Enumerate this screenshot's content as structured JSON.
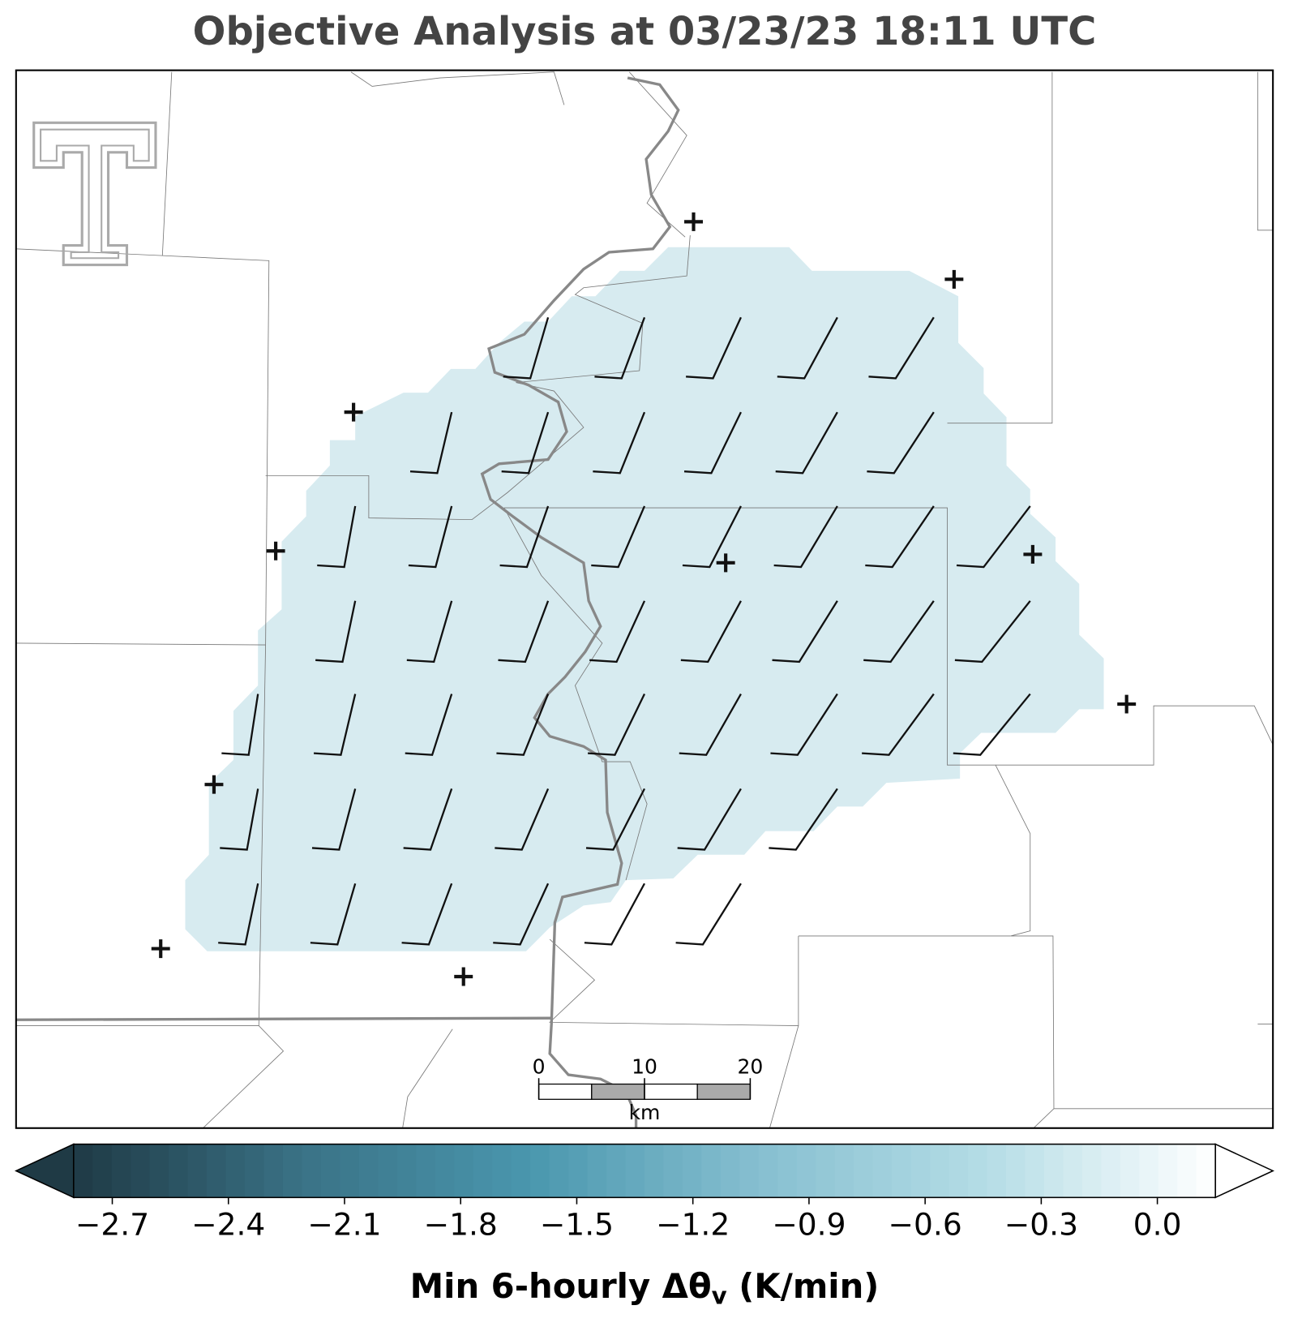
{
  "chart_data": {
    "type": "map",
    "title": "Objective Analysis at 03/23/23 18:11 UTC",
    "scale_bar": {
      "ticks": [
        0,
        10,
        20
      ],
      "unit": "km"
    },
    "colorbar": {
      "clim": [
        -2.8,
        0.15
      ],
      "ticks": [
        {
          "value": -2.7,
          "label": "−2.7"
        },
        {
          "value": -2.4,
          "label": "−2.4"
        },
        {
          "value": -2.1,
          "label": "−2.1"
        },
        {
          "value": -1.8,
          "label": "−1.8"
        },
        {
          "value": -1.5,
          "label": "−1.5"
        },
        {
          "value": -1.2,
          "label": "−1.2"
        },
        {
          "value": -0.9,
          "label": "−0.9"
        },
        {
          "value": -0.6,
          "label": "−0.6"
        },
        {
          "value": -0.3,
          "label": "−0.3"
        },
        {
          "value": 0,
          "label": "0.0"
        }
      ],
      "colormap": [
        "#1f3a45",
        "#3a7286",
        "#4a97ae",
        "#86bfd0",
        "#b5dde6",
        "#ffffff"
      ],
      "label": {
        "text": "Min 6-hourly Δθ",
        "subscript": "v",
        "suffix": " (K/min)"
      }
    }
  }
}
